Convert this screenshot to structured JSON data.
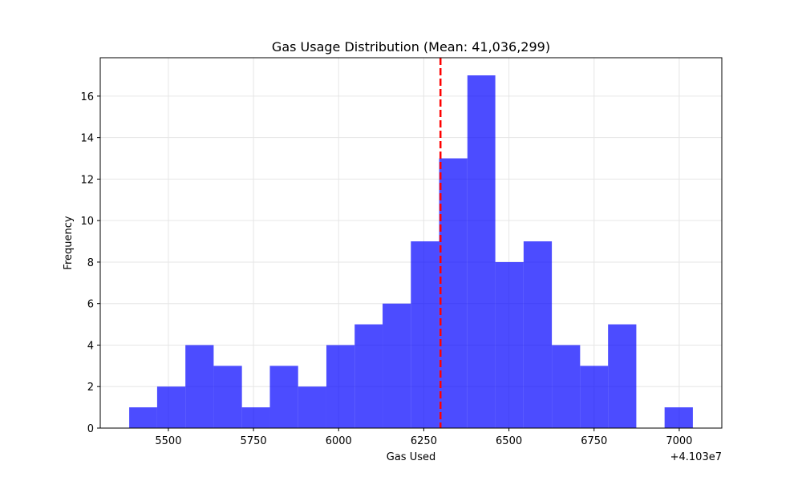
{
  "chart_data": {
    "type": "bar",
    "title": "Gas Usage Distribution (Mean: 41,036,299)",
    "xlabel": "Gas Used",
    "ylabel": "Frequency",
    "x_offset_label": "+4.103e7",
    "bins": [
      {
        "x0": 5385,
        "x1": 5467,
        "count": 1
      },
      {
        "x0": 5467,
        "x1": 5550,
        "count": 2
      },
      {
        "x0": 5550,
        "x1": 5633,
        "count": 4
      },
      {
        "x0": 5633,
        "x1": 5716,
        "count": 3
      },
      {
        "x0": 5716,
        "x1": 5798,
        "count": 1
      },
      {
        "x0": 5798,
        "x1": 5881,
        "count": 3
      },
      {
        "x0": 5881,
        "x1": 5964,
        "count": 2
      },
      {
        "x0": 5964,
        "x1": 6047,
        "count": 4
      },
      {
        "x0": 6047,
        "x1": 6129,
        "count": 5
      },
      {
        "x0": 6129,
        "x1": 6212,
        "count": 6
      },
      {
        "x0": 6212,
        "x1": 6295,
        "count": 9
      },
      {
        "x0": 6295,
        "x1": 6378,
        "count": 13
      },
      {
        "x0": 6378,
        "x1": 6460,
        "count": 17
      },
      {
        "x0": 6460,
        "x1": 6543,
        "count": 8
      },
      {
        "x0": 6543,
        "x1": 6626,
        "count": 9
      },
      {
        "x0": 6626,
        "x1": 6709,
        "count": 4
      },
      {
        "x0": 6709,
        "x1": 6791,
        "count": 3
      },
      {
        "x0": 6791,
        "x1": 6874,
        "count": 5
      },
      {
        "x0": 6874,
        "x1": 6957,
        "count": 0
      },
      {
        "x0": 6957,
        "x1": 7040,
        "count": 1
      }
    ],
    "mean_line": 6299,
    "xlim": [
      5300,
      7125
    ],
    "ylim": [
      0,
      17.85
    ],
    "xticks": [
      5500,
      5750,
      6000,
      6250,
      6500,
      6750,
      7000
    ],
    "yticks": [
      0,
      2,
      4,
      6,
      8,
      10,
      12,
      14,
      16
    ],
    "grid": true,
    "colors": {
      "bar": "#0000ff",
      "bar_alpha": 0.7,
      "mean_line": "#ff0000",
      "grid": "#e6e6e6"
    }
  }
}
